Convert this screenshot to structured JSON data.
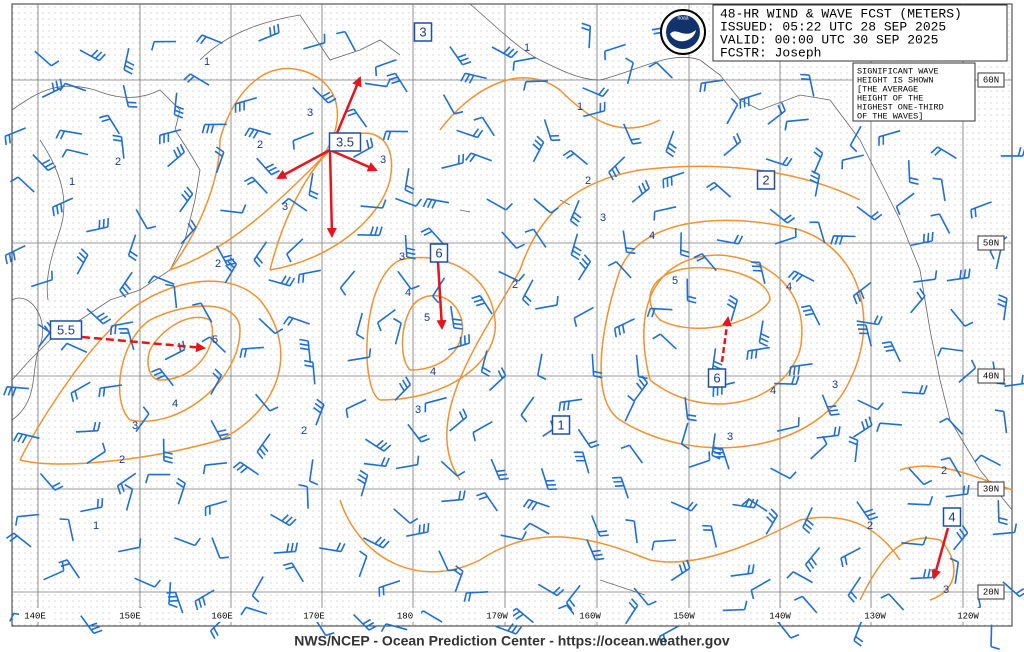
{
  "header": {
    "lines": [
      "48-HR WIND & WAVE FCST (METERS)",
      "ISSUED: 05:22 UTC 28 SEP 2025",
      "VALID:  00:00 UTC 30 SEP 2025",
      "FCSTR:  Joseph"
    ]
  },
  "note": {
    "lines": [
      "SIGNIFICANT WAVE",
      "HEIGHT IS SHOWN",
      "[THE AVERAGE",
      "HEIGHT OF THE",
      "HIGHEST ONE-THIRD",
      "OF THE WAVES]"
    ]
  },
  "logo": "noaa",
  "longitude_labels": [
    "140E",
    "150E",
    "160E",
    "170E",
    "180",
    "170W",
    "160W",
    "150W",
    "140W",
    "130W",
    "120W"
  ],
  "latitude_labels": [
    "60N",
    "50N",
    "40N",
    "30N",
    "20N"
  ],
  "wave_boxes": [
    "3",
    "3.5",
    "6",
    "5.5",
    "1",
    "2",
    "6",
    "4"
  ],
  "contour_labels": [
    1,
    2,
    1,
    3,
    2,
    3,
    3,
    2,
    3,
    4,
    5,
    4,
    3,
    2,
    5,
    4,
    3,
    2,
    1,
    2,
    1,
    1,
    2,
    3,
    4,
    5,
    4,
    4,
    3,
    3,
    2,
    2,
    3
  ],
  "footer": "NWS/NCEP - Ocean Prediction Center - https://ocean.weather.gov"
}
